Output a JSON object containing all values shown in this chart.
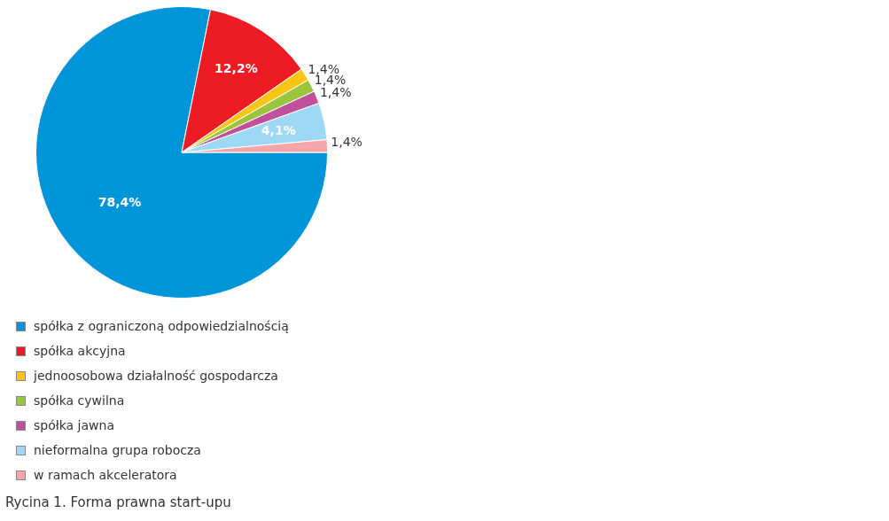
{
  "chart_data": {
    "type": "pie",
    "title": "Rycina 1. Forma prawna start-upu",
    "categories": [
      "spółka z ograniczoną odpowiedzialnością",
      "spółka akcyjna",
      "jednoosobowa działalność gospodarcza",
      "spółka cywilna",
      "spółka jawna",
      "nieformalna grupa robocza",
      "w ramach akceleratora"
    ],
    "values": [
      78.4,
      12.2,
      1.4,
      1.4,
      1.4,
      4.1,
      1.4
    ],
    "value_labels": [
      "78,4%",
      "12,2%",
      "1,4%",
      "1,4%",
      "1,4%",
      "4,1%",
      "1,4%"
    ],
    "colors": [
      "#0095d9",
      "#ed1c24",
      "#fcc516",
      "#9bc53d",
      "#c0509b",
      "#9dd9f5",
      "#f4a6a8"
    ],
    "legend": "bottom left"
  }
}
